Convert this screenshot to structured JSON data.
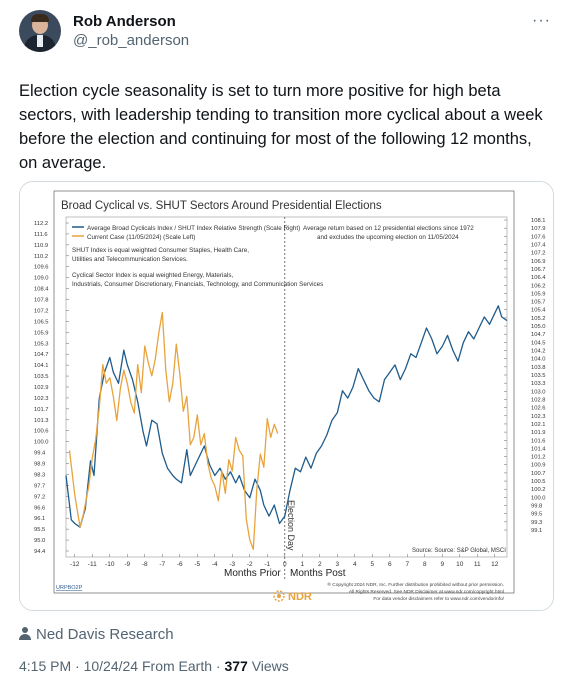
{
  "author": {
    "name": "Rob Anderson",
    "handle": "@_rob_anderson"
  },
  "tweet_text": "Election cycle seasonality is set to turn more positive for high beta sectors, with leadership tending to transition more cyclical about a week before the election and continuing for most of the following 12 months, on average.",
  "footer": {
    "attribution": "Ned Davis Research",
    "time": "4:15 PM",
    "date": "10/24/24",
    "source": "From Earth",
    "views": "377",
    "views_label": "Views"
  },
  "chart_data": {
    "type": "line",
    "title": "Broad Cyclical vs. SHUT Sectors Around Presidential Elections",
    "legend": [
      "Average Broad Cyclicals Index / SHUT Index Relative Strength (Scale Right)",
      "Current Case (11/05/2024) (Scale Left)"
    ],
    "legend_placement": "top-left",
    "notes": [
      "SHUT Index is equal weighted Consumer Staples, Health Care,",
      "Utilities and Telecommunication Services.",
      "Cyclical Sector Index is equal weighted Energy, Materials,",
      "Industrials, Consumer Discretionary, Financials, Technology, and Communication Services"
    ],
    "annotation": [
      "Average return based on 12 presidential elections since 1972",
      "and excludes the upcoming election on 11/05/2024"
    ],
    "election_day_label": "Election Day",
    "source": "Source: Source: S&P Global, MSCI",
    "x_ticks": [
      "-12",
      "-11",
      "-10",
      "-9",
      "-8",
      "-7",
      "-6",
      "-5",
      "-4",
      "-3",
      "-2",
      "-1",
      "0",
      "1",
      "2",
      "3",
      "4",
      "5",
      "6",
      "7",
      "8",
      "9",
      "10",
      "11",
      "12"
    ],
    "x_range": [
      -12.5,
      12.7
    ],
    "xlabel_left": "Months Prior",
    "xlabel_right": "Months Post",
    "left_axis": {
      "ylim": [
        94.4,
        112.2
      ],
      "ticks": [
        "112.2",
        "111.6",
        "110.9",
        "110.2",
        "109.6",
        "109.0",
        "108.4",
        "107.8",
        "107.2",
        "106.5",
        "105.9",
        "105.3",
        "104.7",
        "104.1",
        "103.5",
        "102.9",
        "102.3",
        "101.7",
        "101.3",
        "100.6",
        "100.0",
        "99.4",
        "98.9",
        "98.3",
        "97.7",
        "97.2",
        "96.6",
        "96.1",
        "95.5",
        "95.0",
        "94.4"
      ]
    },
    "right_axis": {
      "ylim": [
        99.1,
        108.1
      ],
      "ticks": [
        "108.1",
        "107.9",
        "107.6",
        "107.4",
        "107.2",
        "106.9",
        "106.7",
        "106.4",
        "106.2",
        "105.9",
        "105.7",
        "105.4",
        "105.2",
        "105.0",
        "104.7",
        "104.5",
        "104.2",
        "104.0",
        "103.8",
        "103.5",
        "103.3",
        "103.0",
        "102.8",
        "102.6",
        "102.3",
        "102.1",
        "101.9",
        "101.6",
        "101.4",
        "101.2",
        "100.9",
        "100.7",
        "100.5",
        "100.2",
        "100.0",
        "99.8",
        "99.5",
        "99.3",
        "99.1"
      ]
    },
    "series": [
      {
        "name": "Average Broad Cyclicals Index / SHUT Index Relative Strength (Scale Right)",
        "color": "#1f5c8c",
        "axis": "right",
        "points": [
          [
            -12.5,
            101.2
          ],
          [
            -12.2,
            100.0
          ],
          [
            -12.0,
            99.9
          ],
          [
            -11.7,
            99.8
          ],
          [
            -11.4,
            100.3
          ],
          [
            -11.1,
            101.6
          ],
          [
            -10.9,
            101.2
          ],
          [
            -10.6,
            103.3
          ],
          [
            -10.3,
            104.0
          ],
          [
            -10.0,
            104.4
          ],
          [
            -9.8,
            104.0
          ],
          [
            -9.5,
            103.7
          ],
          [
            -9.2,
            104.6
          ],
          [
            -9.0,
            104.2
          ],
          [
            -8.7,
            103.8
          ],
          [
            -8.4,
            103.2
          ],
          [
            -8.1,
            102.4
          ],
          [
            -7.9,
            102.0
          ],
          [
            -7.6,
            102.7
          ],
          [
            -7.3,
            102.6
          ],
          [
            -7.0,
            101.8
          ],
          [
            -6.7,
            101.4
          ],
          [
            -6.4,
            101.2
          ],
          [
            -6.2,
            101.1
          ],
          [
            -5.9,
            101.0
          ],
          [
            -5.6,
            101.9
          ],
          [
            -5.4,
            101.2
          ],
          [
            -5.1,
            101.5
          ],
          [
            -4.8,
            101.8
          ],
          [
            -4.6,
            102.0
          ],
          [
            -4.3,
            101.5
          ],
          [
            -4.0,
            101.2
          ],
          [
            -3.7,
            101.4
          ],
          [
            -3.4,
            101.1
          ],
          [
            -3.1,
            101.3
          ],
          [
            -2.8,
            101.0
          ],
          [
            -2.6,
            101.2
          ],
          [
            -2.3,
            100.8
          ],
          [
            -2.0,
            100.6
          ],
          [
            -1.7,
            101.1
          ],
          [
            -1.4,
            100.8
          ],
          [
            -1.2,
            100.4
          ],
          [
            -0.9,
            100.1
          ],
          [
            -0.6,
            100.4
          ],
          [
            -0.3,
            99.9
          ],
          [
            0.0,
            100.1
          ],
          [
            0.3,
            100.8
          ],
          [
            0.6,
            101.4
          ],
          [
            0.9,
            101.3
          ],
          [
            1.2,
            101.7
          ],
          [
            1.5,
            101.4
          ],
          [
            1.8,
            101.8
          ],
          [
            2.1,
            102.0
          ],
          [
            2.4,
            102.3
          ],
          [
            2.7,
            102.7
          ],
          [
            3.0,
            102.9
          ],
          [
            3.3,
            103.5
          ],
          [
            3.6,
            103.3
          ],
          [
            3.9,
            103.6
          ],
          [
            4.2,
            104.1
          ],
          [
            4.5,
            103.8
          ],
          [
            4.8,
            103.5
          ],
          [
            5.1,
            103.3
          ],
          [
            5.4,
            103.2
          ],
          [
            5.7,
            103.8
          ],
          [
            6.0,
            104.0
          ],
          [
            6.3,
            104.2
          ],
          [
            6.6,
            103.8
          ],
          [
            6.9,
            104.1
          ],
          [
            7.2,
            104.5
          ],
          [
            7.5,
            104.4
          ],
          [
            7.8,
            104.8
          ],
          [
            8.1,
            105.2
          ],
          [
            8.4,
            104.9
          ],
          [
            8.7,
            104.5
          ],
          [
            9.0,
            104.7
          ],
          [
            9.3,
            105.0
          ],
          [
            9.6,
            104.6
          ],
          [
            9.9,
            104.3
          ],
          [
            10.2,
            104.8
          ],
          [
            10.5,
            105.1
          ],
          [
            10.8,
            104.9
          ],
          [
            11.1,
            105.2
          ],
          [
            11.4,
            105.5
          ],
          [
            11.7,
            105.3
          ],
          [
            12.0,
            105.6
          ],
          [
            12.2,
            105.8
          ],
          [
            12.4,
            105.5
          ],
          [
            12.7,
            105.4
          ]
        ]
      },
      {
        "name": "Current Case (11/05/2024) (Scale Left)",
        "color": "#e8a33c",
        "axis": "left",
        "points": [
          [
            -12.3,
            99.9
          ],
          [
            -12.0,
            97.5
          ],
          [
            -11.7,
            95.8
          ],
          [
            -11.5,
            96.5
          ],
          [
            -11.2,
            98.0
          ],
          [
            -11.0,
            99.5
          ],
          [
            -10.8,
            100.5
          ],
          [
            -10.6,
            102.2
          ],
          [
            -10.4,
            104.5
          ],
          [
            -10.2,
            103.5
          ],
          [
            -10.0,
            103.8
          ],
          [
            -9.8,
            102.8
          ],
          [
            -9.6,
            101.5
          ],
          [
            -9.4,
            103.2
          ],
          [
            -9.2,
            104.2
          ],
          [
            -9.0,
            103.5
          ],
          [
            -8.8,
            102.5
          ],
          [
            -8.6,
            101.9
          ],
          [
            -8.4,
            104.5
          ],
          [
            -8.2,
            103.0
          ],
          [
            -8.0,
            105.5
          ],
          [
            -7.8,
            104.6
          ],
          [
            -7.6,
            103.9
          ],
          [
            -7.4,
            104.8
          ],
          [
            -7.2,
            106.2
          ],
          [
            -7.0,
            107.3
          ],
          [
            -6.8,
            104.2
          ],
          [
            -6.6,
            102.5
          ],
          [
            -6.4,
            103.5
          ],
          [
            -6.2,
            105.6
          ],
          [
            -6.0,
            104.0
          ],
          [
            -5.8,
            102.0
          ],
          [
            -5.6,
            102.8
          ],
          [
            -5.4,
            100.2
          ],
          [
            -5.2,
            100.6
          ],
          [
            -5.0,
            101.8
          ],
          [
            -4.8,
            100.2
          ],
          [
            -4.6,
            100.8
          ],
          [
            -4.4,
            99.2
          ],
          [
            -4.2,
            98.4
          ],
          [
            -4.0,
            98.0
          ],
          [
            -3.8,
            97.2
          ],
          [
            -3.6,
            98.8
          ],
          [
            -3.4,
            97.6
          ],
          [
            -3.2,
            99.4
          ],
          [
            -3.0,
            98.8
          ],
          [
            -2.8,
            100.6
          ],
          [
            -2.6,
            99.9
          ],
          [
            -2.4,
            99.6
          ],
          [
            -2.2,
            96.2
          ],
          [
            -2.0,
            95.1
          ],
          [
            -1.8,
            94.6
          ],
          [
            -1.6,
            97.8
          ],
          [
            -1.4,
            99.7
          ],
          [
            -1.2,
            99.0
          ],
          [
            -1.0,
            101.6
          ],
          [
            -0.8,
            100.6
          ],
          [
            -0.6,
            101.3
          ],
          [
            -0.4,
            100.8
          ]
        ]
      }
    ]
  },
  "chart_footer": {
    "copyright": "® Copyright 2024 NDR, Inc. Further distribution prohibited without prior permission.",
    "rights": "All Rights Reserved. See NDR Disclaimer at www.ndr.com/copyright.html",
    "vendor": "For data vendor disclaimers refer to www.ndr.com/vendorinfo/",
    "code": "URPBO2P",
    "logo_text": "NDR"
  }
}
